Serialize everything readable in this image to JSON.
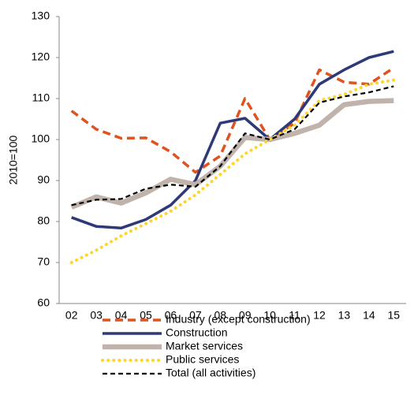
{
  "chart_data": {
    "type": "line",
    "y_label": "2010=100",
    "categories": [
      "02",
      "03",
      "04",
      "05",
      "06",
      "07",
      "08",
      "09",
      "10",
      "11",
      "12",
      "13",
      "14",
      "15"
    ],
    "series": [
      {
        "name": "Industry (except construction)",
        "color": "#e0531f",
        "style": "dashed",
        "values": [
          107,
          102.5,
          100.3,
          100.4,
          97,
          92,
          96,
          110,
          100,
          104,
          117,
          114,
          113.5,
          117.5
        ]
      },
      {
        "name": "Construction",
        "color": "#2e3a78",
        "style": "solid",
        "values": [
          81,
          78.8,
          78.4,
          80.5,
          84,
          90,
          104,
          105.2,
          100,
          105,
          113.5,
          117,
          120,
          121.5
        ]
      },
      {
        "name": "Market services",
        "color": "#bfb3ab",
        "style": "thick",
        "values": [
          83.5,
          86,
          84.5,
          87,
          90.3,
          89,
          93.5,
          100.5,
          100,
          101.5,
          103.5,
          108.5,
          109.3,
          109.5
        ]
      },
      {
        "name": "Public services",
        "color": "#ffd52a",
        "style": "dotted",
        "values": [
          70,
          73,
          76.5,
          79.5,
          82.5,
          86.5,
          91.5,
          96.5,
          100,
          103.5,
          109.5,
          111,
          113.5,
          114.5
        ]
      },
      {
        "name": "Total (all activities)",
        "color": "#000000",
        "style": "thin-dashed",
        "values": [
          84,
          85.3,
          85.5,
          88,
          89,
          88.5,
          93.5,
          101.5,
          100,
          102.5,
          109,
          110.5,
          111.5,
          113
        ]
      }
    ],
    "ylim": [
      60,
      130
    ],
    "yticks": [
      60,
      70,
      80,
      90,
      100,
      110,
      120,
      130
    ],
    "grid": false
  }
}
